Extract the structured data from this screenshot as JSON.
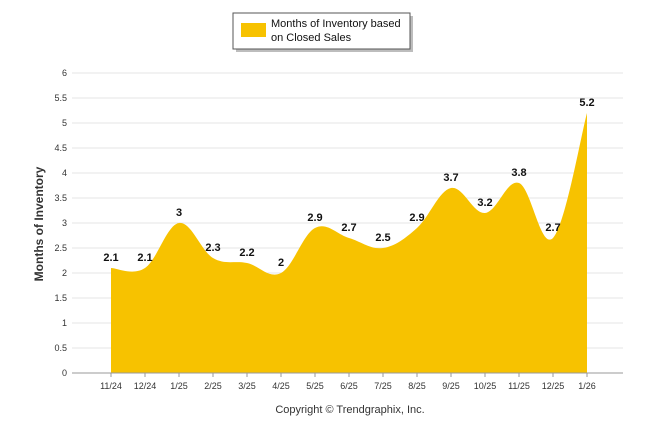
{
  "chart_data": {
    "type": "area",
    "categories": [
      "11/24",
      "12/24",
      "1/25",
      "2/25",
      "3/25",
      "4/25",
      "5/25",
      "6/25",
      "7/25",
      "8/25",
      "9/25",
      "10/25",
      "11/25",
      "12/25",
      "1/26"
    ],
    "series": [
      {
        "name": "Months of Inventory based on Closed Sales",
        "values": [
          2.1,
          2.1,
          3,
          2.3,
          2.2,
          2,
          2.9,
          2.7,
          2.5,
          2.9,
          3.7,
          3.2,
          3.8,
          2.7,
          5.2
        ],
        "color": "#f7c200"
      }
    ],
    "data_labels": [
      "2.1",
      "2.1",
      "3",
      "2.3",
      "2.2",
      "2",
      "2.9",
      "2.7",
      "2.5",
      "2.9",
      "3.7",
      "3.2",
      "3.8",
      "2.7",
      "5.2"
    ],
    "ylabel": "Months of Inventory",
    "ylim": [
      0,
      6
    ],
    "yticks": [
      "0",
      "0.5",
      "1",
      "1.5",
      "2",
      "2.5",
      "3",
      "3.5",
      "4",
      "4.5",
      "5",
      "5.5",
      "6"
    ],
    "legend": {
      "line1": "Months of Inventory based",
      "line2": "on Closed Sales",
      "placement": "top-center"
    },
    "grid": true,
    "footer": "Copyright © Trendgraphix, Inc."
  }
}
